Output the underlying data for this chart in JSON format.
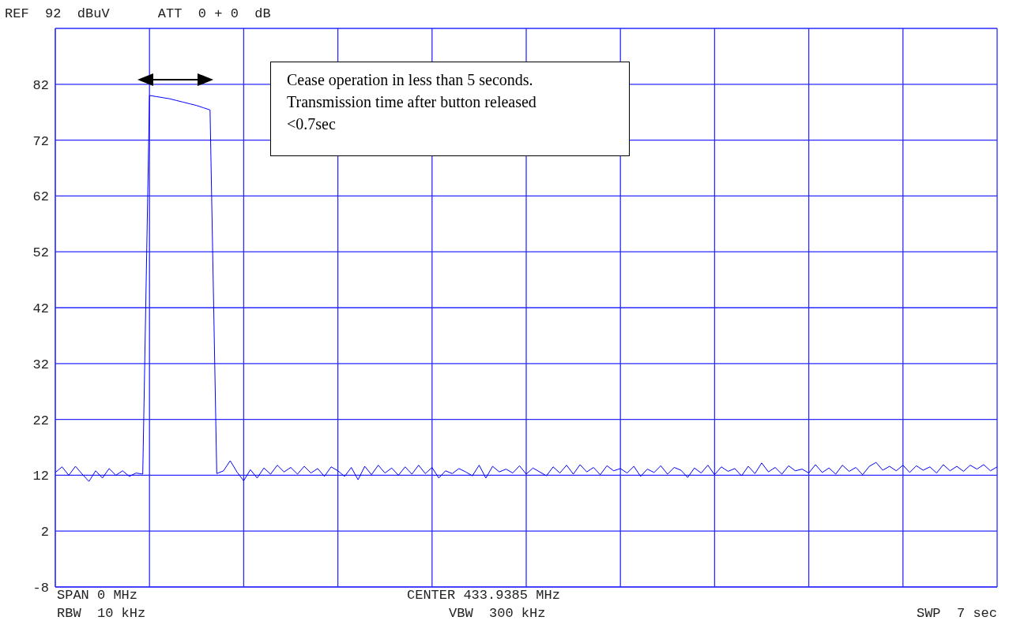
{
  "chart_data": {
    "type": "line",
    "title": "REF  92  dBuV      ATT  0 + 0  dB",
    "annotations": [
      "SPAN 0 MHz",
      "CENTER 433.9385 MHz",
      "RBW  10 kHz",
      "VBW  300 kHz",
      "SWP  7 sec",
      "Cease operation in less than 5 seconds. Transmission time after button released <0.7sec"
    ],
    "categories": [
      null,
      null,
      null,
      null,
      null,
      null,
      null,
      null,
      null,
      null,
      null,
      null,
      null,
      null,
      null,
      null,
      null,
      null,
      null,
      null,
      null,
      null,
      null,
      null,
      null,
      null,
      null,
      null,
      null,
      null,
      null,
      null,
      null,
      null,
      null,
      null,
      null,
      null,
      null,
      null,
      null,
      null,
      null,
      null,
      null,
      null,
      null,
      null,
      null,
      null,
      null,
      null,
      null,
      null,
      null,
      null,
      null,
      null,
      null,
      null,
      null,
      null,
      null,
      null,
      null,
      null,
      null,
      null,
      null,
      null,
      null,
      null,
      null,
      null,
      null,
      null,
      null,
      null,
      null,
      null,
      null,
      null,
      null,
      null,
      null,
      null,
      null,
      null,
      null,
      null,
      null,
      null,
      null,
      null,
      null,
      null,
      null,
      null,
      null,
      null,
      null,
      null,
      null,
      null,
      null,
      null,
      null,
      null,
      null,
      null,
      null,
      null,
      null,
      null,
      null,
      null,
      null,
      null,
      null,
      null,
      null,
      null,
      null,
      null,
      null,
      null,
      null,
      null,
      null,
      null,
      null,
      null,
      null,
      null,
      null,
      null,
      null,
      null,
      null,
      null,
      null
    ],
    "series": [
      {
        "color": "#0000ff",
        "values": [
          12.5,
          13.5,
          12,
          13.6,
          12.2,
          10.9,
          12.8,
          11.5,
          13.2,
          12,
          12.8,
          11.8,
          12.4,
          12.2,
          80,
          79.8,
          79.6,
          79.4,
          79.1,
          78.8,
          78.5,
          78.2,
          77.8,
          77.4,
          12.3,
          12.8,
          14.6,
          12.6,
          11,
          13,
          11.5,
          13.3,
          12.2,
          13.8,
          12.6,
          13.4,
          12.2,
          13.6,
          12.4,
          13.2,
          11.8,
          13.5,
          12.8,
          11.8,
          13.4,
          11.2,
          13.6,
          12.1,
          13.8,
          12.4,
          13.3,
          12,
          13.5,
          12.2,
          13.8,
          12.3,
          13.4,
          11.5,
          12.8,
          12.3,
          13.2,
          12.6,
          11.9,
          13.8,
          11.5,
          13.6,
          12.6,
          13.1,
          12.4,
          13.7,
          12.2,
          13.3,
          12.6,
          11.9,
          13.5,
          12.4,
          13.8,
          12.2,
          13.9,
          12.6,
          13.4,
          12.1,
          13.7,
          12.8,
          13.2,
          12.4,
          13.6,
          11.8,
          13.1,
          12.5,
          13.7,
          12.2,
          13.4,
          12.9,
          11.6,
          13.3,
          12.4,
          13.8,
          12.1,
          13.5,
          12.7,
          13.2,
          11.9,
          13.6,
          12.3,
          14.2,
          12.6,
          13.4,
          12.2,
          13.7,
          12.8,
          13.1,
          12.4,
          13.9,
          12.5,
          13.3,
          12.2,
          13.8,
          12.7,
          13.4,
          12.1,
          13.6,
          14.3,
          12.9,
          13.6,
          12.8,
          13.8,
          12.5,
          13.7,
          12.9,
          13.5,
          12.4,
          13.9,
          12.8,
          13.6,
          12.7,
          13.8,
          13.1,
          13.9,
          12.8,
          13.5
        ]
      }
    ],
    "ylim": [
      -8,
      92
    ],
    "yticks": [
      -8,
      2,
      12,
      22,
      32,
      42,
      52,
      62,
      72,
      82
    ],
    "tick_labels": "y",
    "grid": true,
    "marker": "none",
    "line_style": "solid"
  }
}
